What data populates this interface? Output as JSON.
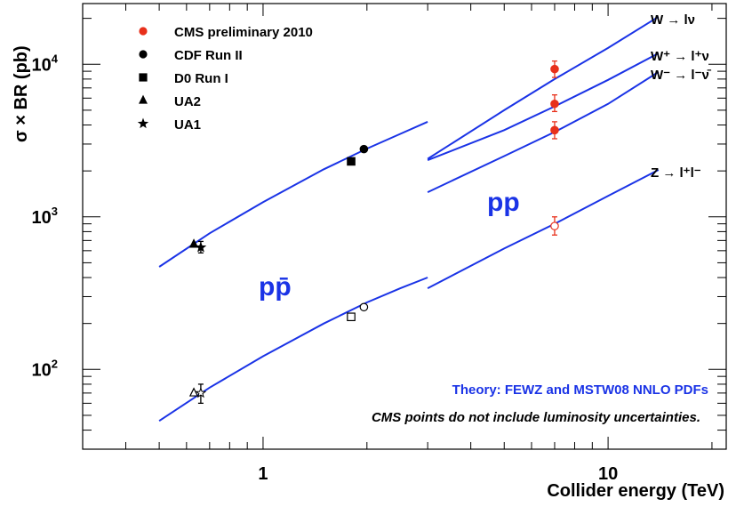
{
  "chart_data": {
    "type": "scatter",
    "title": "",
    "xlabel": "Collider energy (TeV)",
    "ylabel": "σ × BR (pb)",
    "x_scale": "log",
    "y_scale": "log",
    "xlim": [
      0.3,
      22
    ],
    "ylim": [
      30,
      25000
    ],
    "x_tick_labels": [
      "1",
      "10"
    ],
    "y_tick_labels": [
      {
        "base": "10",
        "exp": "2",
        "value": 100
      },
      {
        "base": "10",
        "exp": "3",
        "value": 1000
      },
      {
        "base": "10",
        "exp": "4",
        "value": 10000
      }
    ],
    "legend_position": "top-left",
    "legend": [
      {
        "label": "CMS preliminary 2010",
        "marker": "circle",
        "color": "#e8301b"
      },
      {
        "label": "CDF Run II",
        "marker": "circle",
        "color": "#000000"
      },
      {
        "label": "D0 Run I",
        "marker": "square",
        "color": "#000000"
      },
      {
        "label": "UA2",
        "marker": "triangle",
        "color": "#000000"
      },
      {
        "label": "UA1",
        "marker": "star",
        "color": "#000000"
      }
    ],
    "theory_color": "#1a33e6",
    "curves": [
      {
        "x": [
          0.5,
          0.7,
          1,
          1.5,
          2,
          2.5,
          3
        ],
        "y": [
          470,
          780,
          1250,
          2050,
          2800,
          3500,
          4200
        ]
      },
      {
        "x": [
          3,
          5,
          7,
          10,
          14
        ],
        "y": [
          2400,
          5000,
          8000,
          12800,
          20500
        ]
      },
      {
        "x": [
          3,
          5,
          7,
          10,
          14
        ],
        "y": [
          2350,
          3700,
          5300,
          7900,
          11800
        ]
      },
      {
        "x": [
          3,
          5,
          7,
          10,
          14
        ],
        "y": [
          1450,
          2500,
          3600,
          5500,
          8900
        ]
      },
      {
        "x": [
          0.5,
          0.7,
          1,
          1.5,
          2,
          2.5,
          3
        ],
        "y": [
          46,
          76,
          122,
          200,
          275,
          340,
          400
        ]
      },
      {
        "x": [
          3,
          5,
          7,
          10,
          14
        ],
        "y": [
          340,
          620,
          900,
          1370,
          2030
        ]
      }
    ],
    "curve_labels": [
      {
        "text": "W → lν",
        "x": 14,
        "y": 20500
      },
      {
        "text": "W⁺ → l⁺ν",
        "x": 14,
        "y": 11800
      },
      {
        "text": "W⁻ → l⁻ν̄",
        "x": 14,
        "y": 8900
      },
      {
        "text": "Z → l⁺l⁻",
        "x": 14,
        "y": 2030
      }
    ],
    "points": [
      {
        "experiment": "CMS preliminary 2010",
        "process": "W",
        "x": 7,
        "y": 9300,
        "err_lo": 8200,
        "err_hi": 10500,
        "marker": "circle",
        "filled": true
      },
      {
        "experiment": "CMS preliminary 2010",
        "process": "W+",
        "x": 7,
        "y": 5500,
        "err_lo": 4900,
        "err_hi": 6300,
        "marker": "circle",
        "filled": true
      },
      {
        "experiment": "CMS preliminary 2010",
        "process": "W-",
        "x": 7,
        "y": 3700,
        "err_lo": 3250,
        "err_hi": 4200,
        "marker": "circle",
        "filled": true
      },
      {
        "experiment": "CMS preliminary 2010",
        "process": "Z",
        "x": 7,
        "y": 870,
        "err_lo": 760,
        "err_hi": 1000,
        "marker": "circle",
        "filled": false
      },
      {
        "experiment": "CDF Run II",
        "process": "W",
        "x": 1.96,
        "y": 2780,
        "marker": "circle",
        "filled": true
      },
      {
        "experiment": "CDF Run II",
        "process": "Z",
        "x": 1.96,
        "y": 256,
        "marker": "circle",
        "filled": false
      },
      {
        "experiment": "D0 Run I",
        "process": "W",
        "x": 1.8,
        "y": 2310,
        "marker": "square",
        "filled": true
      },
      {
        "experiment": "D0 Run I",
        "process": "Z",
        "x": 1.8,
        "y": 221,
        "marker": "square",
        "filled": false
      },
      {
        "experiment": "UA2",
        "process": "W",
        "x": 0.63,
        "y": 660,
        "marker": "triangle",
        "filled": true
      },
      {
        "experiment": "UA2",
        "process": "Z",
        "x": 0.63,
        "y": 70,
        "marker": "triangle",
        "filled": false
      },
      {
        "experiment": "UA1",
        "process": "W",
        "x": 0.66,
        "y": 630,
        "err_lo": 580,
        "err_hi": 690,
        "marker": "star",
        "filled": true
      },
      {
        "experiment": "UA1",
        "process": "Z",
        "x": 0.66,
        "y": 70,
        "err_lo": 60,
        "err_hi": 80,
        "marker": "star",
        "filled": false
      }
    ],
    "annotations": {
      "ppbar": "pp̄",
      "pp": "pp",
      "theory": "Theory: FEWZ and MSTW08 NNLO PDFs",
      "cms_note": "CMS points do not include luminosity uncertainties."
    }
  }
}
